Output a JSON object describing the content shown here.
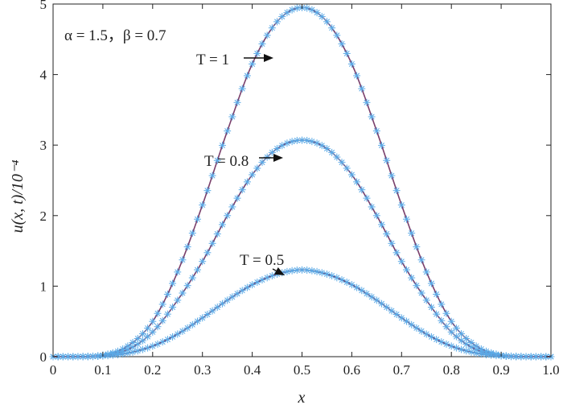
{
  "chart_data": {
    "type": "line",
    "title": "",
    "xlabel": "x",
    "ylabel": "u(x, t)/10⁻⁴",
    "xlim": [
      0,
      1.0
    ],
    "ylim": [
      0,
      5.0
    ],
    "x_ticks": [
      "0",
      "0.1",
      "0.2",
      "0.3",
      "0.4",
      "0.5",
      "0.6",
      "0.7",
      "0.8",
      "0.9",
      "1.0"
    ],
    "y_ticks": [
      "0",
      "1",
      "2",
      "3",
      "4",
      "5"
    ],
    "grid": false,
    "params_text": "α = 1.5，β = 0.7",
    "x": [
      0,
      0.05,
      0.1,
      0.15,
      0.2,
      0.25,
      0.3,
      0.35,
      0.4,
      0.45,
      0.5,
      0.55,
      0.6,
      0.65,
      0.7,
      0.75,
      0.8,
      0.85,
      0.9,
      0.95,
      1.0
    ],
    "series": [
      {
        "label": "T = 1",
        "values": [
          0,
          0,
          0.02,
          0.15,
          0.5,
          1.2,
          2.15,
          3.2,
          4.15,
          4.75,
          4.95,
          4.75,
          4.15,
          3.2,
          2.15,
          1.2,
          0.5,
          0.15,
          0.02,
          0,
          0
        ]
      },
      {
        "label": "T = 0.8",
        "values": [
          0,
          0,
          0.02,
          0.1,
          0.35,
          0.8,
          1.35,
          2.0,
          2.58,
          2.95,
          3.07,
          2.95,
          2.58,
          2.0,
          1.35,
          0.8,
          0.35,
          0.1,
          0.02,
          0,
          0
        ]
      },
      {
        "label": "T = 0.5",
        "values": [
          0,
          0,
          0.01,
          0.05,
          0.15,
          0.32,
          0.55,
          0.8,
          1.02,
          1.17,
          1.23,
          1.17,
          1.02,
          0.8,
          0.55,
          0.32,
          0.15,
          0.05,
          0.01,
          0,
          0
        ]
      }
    ],
    "marker_color": "#5aa9e6",
    "line_color": "#7a3f6b"
  }
}
